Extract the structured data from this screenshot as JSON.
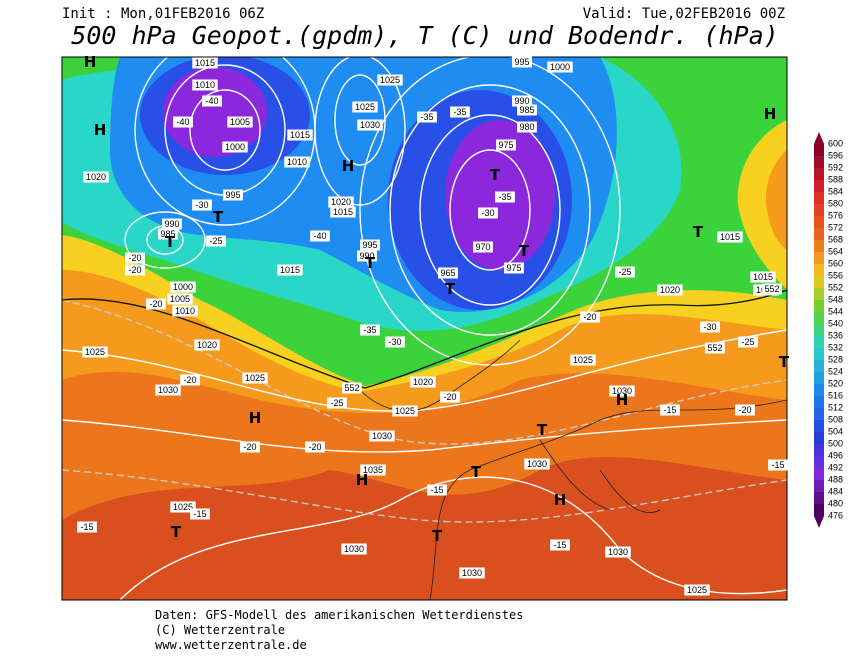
{
  "header": {
    "init": "Init : Mon,01FEB2016 06Z",
    "valid": "Valid: Tue,02FEB2016 00Z",
    "title": "500 hPa Geopot.(gpdm), T (C) und Bodendr. (hPa)"
  },
  "colorbar": {
    "labels": [
      600,
      596,
      592,
      588,
      584,
      580,
      576,
      572,
      568,
      564,
      560,
      556,
      552,
      548,
      544,
      540,
      536,
      532,
      528,
      524,
      520,
      516,
      512,
      508,
      504,
      500,
      496,
      492,
      488,
      484,
      480,
      476
    ]
  },
  "map": {
    "labels": [
      "1015",
      "1010",
      "1005",
      "1000",
      "995",
      "990",
      "985",
      "1000",
      "1005",
      "1010",
      "1020",
      "1025",
      "1030",
      "1025",
      "1020",
      "1025",
      "1025",
      "1030",
      "1015",
      "1010",
      "1020",
      "1015",
      "995",
      "990",
      "1015",
      "995",
      "990",
      "985",
      "980",
      "975",
      "970",
      "965",
      "975",
      "1000",
      "1015",
      "1015",
      "1020",
      "1020",
      "1025",
      "1030",
      "1030",
      "1025",
      "1020",
      "1035",
      "1030",
      "1025",
      "1030",
      "1030",
      "1030",
      "1025",
      "-40",
      "-40",
      "-35",
      "-35",
      "-30",
      "-25",
      "-20",
      "-20",
      "-20",
      "-40",
      "-35",
      "-30",
      "-30",
      "-35",
      "-20",
      "-25",
      "-30",
      "-25",
      "-20",
      "-25",
      "-20",
      "-20",
      "-20",
      "-15",
      "-20",
      "-15",
      "-15",
      "-15",
      "-15",
      "-15",
      "552",
      "552",
      "552",
      "H",
      "H",
      "H",
      "H",
      "H",
      "H",
      "H",
      "H",
      "T",
      "T",
      "T",
      "T",
      "T",
      "T",
      "T",
      "T",
      "T",
      "T",
      "T",
      "T"
    ]
  },
  "footer": {
    "lines": [
      "Daten: GFS-Modell des amerikanischen Wetterdienstes",
      "(C) Wetterzentrale",
      "www.wetterzentrale.de"
    ]
  }
}
